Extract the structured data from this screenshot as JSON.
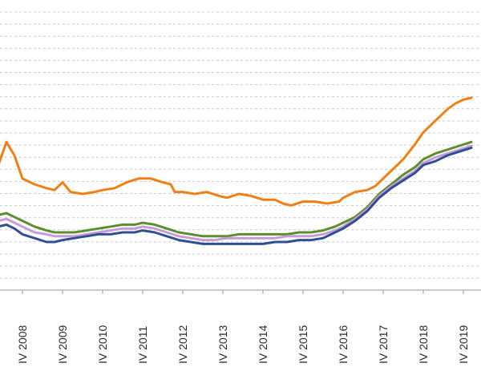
{
  "chart_data": {
    "type": "line",
    "x_tick_labels": [
      "IV 2008",
      "IV 2009",
      "IV 2010",
      "IV 2011",
      "IV 2012",
      "IV 2013",
      "IV 2014",
      "IV 2015",
      "IV 2016",
      "IV 2017",
      "IV 2018",
      "IV 2019"
    ],
    "x_range": [
      2007.0,
      2020.1
    ],
    "y_range": [
      0,
      100
    ],
    "grid": {
      "horizontal": true,
      "style": "dashed",
      "count": 24
    },
    "series": [
      {
        "color": "#f07f16",
        "points": [
          [
            2007.0,
            52
          ],
          [
            2007.15,
            63
          ],
          [
            2007.4,
            65
          ],
          [
            2007.6,
            77
          ],
          [
            2007.8,
            70
          ],
          [
            2008.0,
            58
          ],
          [
            2008.3,
            55
          ],
          [
            2008.6,
            53
          ],
          [
            2008.8,
            52
          ],
          [
            2009.0,
            56
          ],
          [
            2009.2,
            51
          ],
          [
            2009.5,
            50
          ],
          [
            2009.8,
            51
          ],
          [
            2010.0,
            52
          ],
          [
            2010.3,
            53
          ],
          [
            2010.6,
            56
          ],
          [
            2010.9,
            58
          ],
          [
            2011.2,
            58
          ],
          [
            2011.5,
            56
          ],
          [
            2011.7,
            55
          ],
          [
            2011.8,
            51
          ],
          [
            2012.0,
            51
          ],
          [
            2012.3,
            50
          ],
          [
            2012.6,
            51
          ],
          [
            2012.9,
            49
          ],
          [
            2013.1,
            48
          ],
          [
            2013.4,
            50
          ],
          [
            2013.7,
            49
          ],
          [
            2014.0,
            47
          ],
          [
            2014.3,
            47
          ],
          [
            2014.5,
            45
          ],
          [
            2014.7,
            44
          ],
          [
            2015.0,
            46
          ],
          [
            2015.3,
            46
          ],
          [
            2015.6,
            45
          ],
          [
            2015.9,
            46
          ],
          [
            2016.0,
            48
          ],
          [
            2016.3,
            51
          ],
          [
            2016.6,
            52
          ],
          [
            2016.8,
            54
          ],
          [
            2017.0,
            58
          ],
          [
            2017.2,
            62
          ],
          [
            2017.5,
            68
          ],
          [
            2017.8,
            76
          ],
          [
            2018.0,
            82
          ],
          [
            2018.3,
            88
          ],
          [
            2018.6,
            94
          ],
          [
            2018.8,
            97
          ],
          [
            2019.0,
            99
          ],
          [
            2019.2,
            100
          ]
        ]
      },
      {
        "color": "#5b8f2e",
        "points": [
          [
            2007.0,
            31
          ],
          [
            2007.2,
            36
          ],
          [
            2007.4,
            39
          ],
          [
            2007.6,
            40
          ],
          [
            2007.8,
            38
          ],
          [
            2008.0,
            36
          ],
          [
            2008.3,
            33
          ],
          [
            2008.6,
            31
          ],
          [
            2008.8,
            30
          ],
          [
            2009.0,
            30
          ],
          [
            2009.3,
            30
          ],
          [
            2009.6,
            31
          ],
          [
            2009.9,
            32
          ],
          [
            2010.2,
            33
          ],
          [
            2010.5,
            34
          ],
          [
            2010.8,
            34
          ],
          [
            2011.0,
            35
          ],
          [
            2011.3,
            34
          ],
          [
            2011.6,
            32
          ],
          [
            2011.9,
            30
          ],
          [
            2012.2,
            29
          ],
          [
            2012.5,
            28
          ],
          [
            2012.8,
            28
          ],
          [
            2013.1,
            28
          ],
          [
            2013.4,
            29
          ],
          [
            2013.7,
            29
          ],
          [
            2014.0,
            29
          ],
          [
            2014.3,
            29
          ],
          [
            2014.6,
            29
          ],
          [
            2014.9,
            30
          ],
          [
            2015.2,
            30
          ],
          [
            2015.5,
            31
          ],
          [
            2015.8,
            33
          ],
          [
            2016.0,
            35
          ],
          [
            2016.3,
            38
          ],
          [
            2016.6,
            43
          ],
          [
            2016.9,
            50
          ],
          [
            2017.2,
            55
          ],
          [
            2017.5,
            60
          ],
          [
            2017.8,
            64
          ],
          [
            2018.0,
            68
          ],
          [
            2018.3,
            71
          ],
          [
            2018.6,
            73
          ],
          [
            2018.9,
            75
          ],
          [
            2019.2,
            77
          ]
        ]
      },
      {
        "color": "#c79ad8",
        "points": [
          [
            2007.0,
            28
          ],
          [
            2007.2,
            33
          ],
          [
            2007.4,
            36
          ],
          [
            2007.6,
            37
          ],
          [
            2007.8,
            35
          ],
          [
            2008.0,
            33
          ],
          [
            2008.3,
            30
          ],
          [
            2008.6,
            29
          ],
          [
            2008.8,
            28
          ],
          [
            2009.0,
            28
          ],
          [
            2009.3,
            28
          ],
          [
            2009.6,
            29
          ],
          [
            2009.9,
            30
          ],
          [
            2010.2,
            31
          ],
          [
            2010.5,
            32
          ],
          [
            2010.8,
            32
          ],
          [
            2011.0,
            33
          ],
          [
            2011.3,
            32
          ],
          [
            2011.6,
            30
          ],
          [
            2011.9,
            28
          ],
          [
            2012.2,
            27
          ],
          [
            2012.5,
            26
          ],
          [
            2012.8,
            26
          ],
          [
            2013.1,
            27
          ],
          [
            2013.4,
            27
          ],
          [
            2013.7,
            27
          ],
          [
            2014.0,
            27
          ],
          [
            2014.3,
            27
          ],
          [
            2014.6,
            28
          ],
          [
            2014.9,
            28
          ],
          [
            2015.2,
            28
          ],
          [
            2015.5,
            29
          ],
          [
            2015.8,
            31
          ],
          [
            2016.0,
            33
          ],
          [
            2016.3,
            37
          ],
          [
            2016.6,
            42
          ],
          [
            2016.9,
            49
          ],
          [
            2017.2,
            54
          ],
          [
            2017.5,
            58
          ],
          [
            2017.8,
            62
          ],
          [
            2018.0,
            66
          ],
          [
            2018.3,
            69
          ],
          [
            2018.6,
            71
          ],
          [
            2018.9,
            73
          ],
          [
            2019.2,
            75
          ]
        ]
      },
      {
        "color": "#2f4f95",
        "points": [
          [
            2007.0,
            25
          ],
          [
            2007.2,
            30
          ],
          [
            2007.4,
            33
          ],
          [
            2007.6,
            34
          ],
          [
            2007.8,
            32
          ],
          [
            2008.0,
            29
          ],
          [
            2008.3,
            27
          ],
          [
            2008.6,
            25
          ],
          [
            2008.8,
            25
          ],
          [
            2009.0,
            26
          ],
          [
            2009.3,
            27
          ],
          [
            2009.6,
            28
          ],
          [
            2009.9,
            29
          ],
          [
            2010.2,
            29
          ],
          [
            2010.5,
            30
          ],
          [
            2010.8,
            30
          ],
          [
            2011.0,
            31
          ],
          [
            2011.3,
            30
          ],
          [
            2011.6,
            28
          ],
          [
            2011.9,
            26
          ],
          [
            2012.2,
            25
          ],
          [
            2012.5,
            24
          ],
          [
            2012.8,
            24
          ],
          [
            2013.1,
            24
          ],
          [
            2013.4,
            24
          ],
          [
            2013.7,
            24
          ],
          [
            2014.0,
            24
          ],
          [
            2014.3,
            25
          ],
          [
            2014.6,
            25
          ],
          [
            2014.9,
            26
          ],
          [
            2015.2,
            26
          ],
          [
            2015.5,
            27
          ],
          [
            2015.8,
            30
          ],
          [
            2016.0,
            32
          ],
          [
            2016.3,
            36
          ],
          [
            2016.6,
            41
          ],
          [
            2016.9,
            48
          ],
          [
            2017.2,
            53
          ],
          [
            2017.5,
            57
          ],
          [
            2017.8,
            61
          ],
          [
            2018.0,
            65
          ],
          [
            2018.3,
            67
          ],
          [
            2018.6,
            70
          ],
          [
            2018.9,
            72
          ],
          [
            2019.2,
            74
          ]
        ]
      }
    ]
  }
}
